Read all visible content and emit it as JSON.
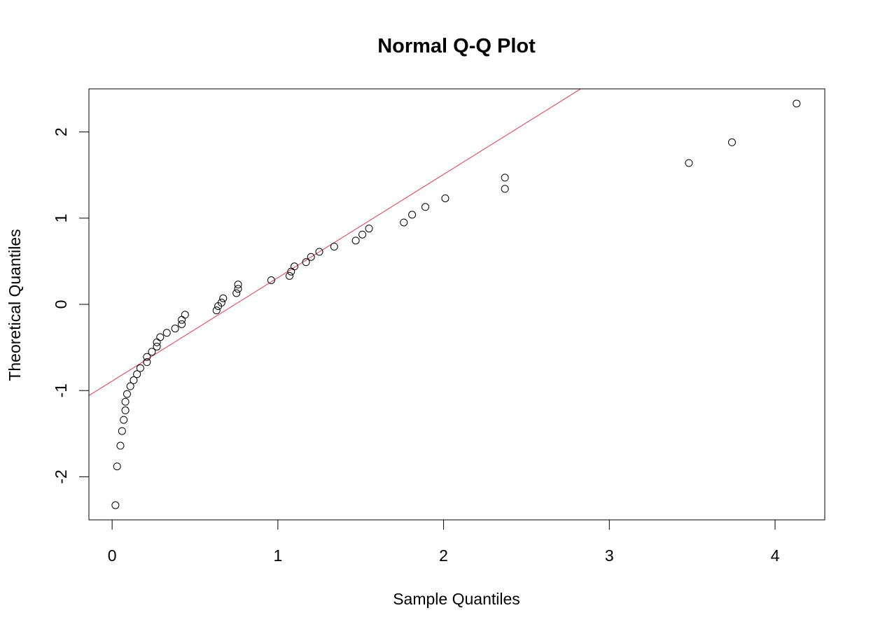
{
  "chart_data": {
    "type": "scatter",
    "title": "Normal Q-Q Plot",
    "xlabel": "Sample Quantiles",
    "ylabel": "Theoretical Quantiles",
    "xlim": [
      -0.14,
      4.3
    ],
    "ylim": [
      -2.5,
      2.5
    ],
    "x_ticks": [
      0,
      1,
      2,
      3,
      4
    ],
    "y_ticks": [
      -2,
      -1,
      0,
      1,
      2
    ],
    "x_tick_labels": [
      "0",
      "1",
      "2",
      "3",
      "4"
    ],
    "y_tick_labels": [
      "-2",
      "-1",
      "0",
      "1",
      "2"
    ],
    "grid": false,
    "reference_line": {
      "intercept": -0.89,
      "slope": 1.199,
      "color": "#e8334a"
    },
    "point_color": "#000000",
    "points": [
      {
        "x": 0.02,
        "y": -2.33
      },
      {
        "x": 0.03,
        "y": -1.88
      },
      {
        "x": 0.05,
        "y": -1.64
      },
      {
        "x": 0.06,
        "y": -1.47
      },
      {
        "x": 0.07,
        "y": -1.34
      },
      {
        "x": 0.08,
        "y": -1.23
      },
      {
        "x": 0.08,
        "y": -1.13
      },
      {
        "x": 0.09,
        "y": -1.04
      },
      {
        "x": 0.11,
        "y": -0.95
      },
      {
        "x": 0.13,
        "y": -0.88
      },
      {
        "x": 0.15,
        "y": -0.81
      },
      {
        "x": 0.17,
        "y": -0.74
      },
      {
        "x": 0.21,
        "y": -0.67
      },
      {
        "x": 0.21,
        "y": -0.61
      },
      {
        "x": 0.24,
        "y": -0.55
      },
      {
        "x": 0.27,
        "y": -0.49
      },
      {
        "x": 0.27,
        "y": -0.44
      },
      {
        "x": 0.29,
        "y": -0.38
      },
      {
        "x": 0.33,
        "y": -0.33
      },
      {
        "x": 0.38,
        "y": -0.28
      },
      {
        "x": 0.42,
        "y": -0.23
      },
      {
        "x": 0.42,
        "y": -0.18
      },
      {
        "x": 0.44,
        "y": -0.12
      },
      {
        "x": 0.63,
        "y": -0.07
      },
      {
        "x": 0.64,
        "y": -0.02
      },
      {
        "x": 0.66,
        "y": 0.02
      },
      {
        "x": 0.67,
        "y": 0.07
      },
      {
        "x": 0.75,
        "y": 0.13
      },
      {
        "x": 0.76,
        "y": 0.18
      },
      {
        "x": 0.76,
        "y": 0.23
      },
      {
        "x": 0.96,
        "y": 0.28
      },
      {
        "x": 1.07,
        "y": 0.33
      },
      {
        "x": 1.08,
        "y": 0.38
      },
      {
        "x": 1.1,
        "y": 0.44
      },
      {
        "x": 1.17,
        "y": 0.49
      },
      {
        "x": 1.2,
        "y": 0.55
      },
      {
        "x": 1.25,
        "y": 0.61
      },
      {
        "x": 1.34,
        "y": 0.67
      },
      {
        "x": 1.47,
        "y": 0.74
      },
      {
        "x": 1.51,
        "y": 0.81
      },
      {
        "x": 1.55,
        "y": 0.88
      },
      {
        "x": 1.76,
        "y": 0.95
      },
      {
        "x": 1.81,
        "y": 1.04
      },
      {
        "x": 1.89,
        "y": 1.13
      },
      {
        "x": 2.01,
        "y": 1.23
      },
      {
        "x": 2.37,
        "y": 1.34
      },
      {
        "x": 2.37,
        "y": 1.47
      },
      {
        "x": 3.48,
        "y": 1.64
      },
      {
        "x": 3.74,
        "y": 1.88
      },
      {
        "x": 4.13,
        "y": 2.33
      }
    ]
  }
}
